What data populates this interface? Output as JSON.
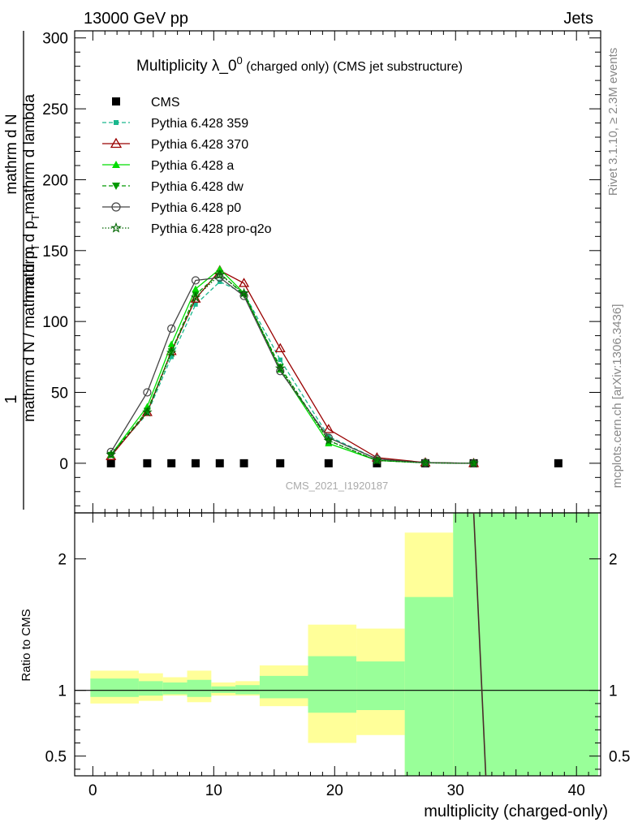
{
  "header": {
    "left": "13000 GeV pp",
    "right": "Jets",
    "side_top": "Rivet 3.1.10, ≥ 2.3M events",
    "side_bottom": "mcplots.cern.ch [arXiv:1306.3436]"
  },
  "chart_data": {
    "type": "line",
    "title_main": "Multiplicity λ_0",
    "title_sup": "0",
    "title_rest": " (charged only) (CMS jet substructure)",
    "watermark": "CMS_2021_I1920187",
    "ylabel_parts": [
      "1",
      "mathrm d N / mathrm d p",
      "T",
      "mathrm d N",
      "mathrm d p",
      "T",
      "mathrm d lambda"
    ],
    "ylabel": "1 / mathrm d N / mathrm d p_T mathrm d N / mathrm d p_T mathrm d lambda",
    "xlabel": "multiplicity (charged-only)",
    "ratio_ylabel": "Ratio to CMS",
    "xlim": [
      -1.5,
      42
    ],
    "ylim": [
      -35,
      305
    ],
    "ratio_ylim": [
      0.35,
      2.35
    ],
    "xticks": [
      0,
      10,
      20,
      30,
      40
    ],
    "yticks": [
      0,
      50,
      100,
      150,
      200,
      250,
      300
    ],
    "ratio_yticks": [
      0.5,
      1,
      2
    ],
    "series": [
      {
        "name": "CMS",
        "color": "#000000",
        "dash": "",
        "marker": "square-filled",
        "x": [
          1.5,
          4.5,
          6.5,
          8.5,
          10.5,
          12.5,
          15.5,
          19.5,
          23.5,
          27.5,
          31.5,
          38.5
        ],
        "y": [
          0,
          0,
          0,
          0,
          0,
          0,
          0,
          0,
          0,
          0,
          0,
          0
        ]
      },
      {
        "name": "Pythia 6.428 359",
        "color": "#1ab78d",
        "dash": "5,3",
        "marker": "square-small",
        "x": [
          1.5,
          4.5,
          6.5,
          8.5,
          10.5,
          12.5,
          15.5,
          19.5,
          23.5,
          27.5,
          31.5
        ],
        "y": [
          6,
          35,
          75,
          112,
          128,
          120,
          73,
          19,
          3,
          0.5,
          0
        ]
      },
      {
        "name": "Pythia 6.428 370",
        "color": "#990000",
        "dash": "",
        "marker": "triangle-open",
        "x": [
          1.5,
          4.5,
          6.5,
          8.5,
          10.5,
          12.5,
          15.5,
          19.5,
          23.5,
          27.5,
          31.5
        ],
        "y": [
          5,
          36,
          79,
          116,
          136,
          127,
          81,
          24,
          4,
          0.5,
          0
        ]
      },
      {
        "name": "Pythia 6.428 a",
        "color": "#00dd00",
        "dash": "",
        "marker": "triangle-filled",
        "x": [
          1.5,
          4.5,
          6.5,
          8.5,
          10.5,
          12.5,
          15.5,
          19.5,
          23.5,
          27.5,
          31.5
        ],
        "y": [
          6,
          40,
          84,
          123,
          137,
          120,
          66,
          14,
          2,
          0.3,
          0
        ]
      },
      {
        "name": "Pythia 6.428 dw",
        "color": "#009900",
        "dash": "5,3",
        "marker": "triangle-down-filled",
        "x": [
          1.5,
          4.5,
          6.5,
          8.5,
          10.5,
          12.5,
          15.5,
          19.5,
          23.5,
          27.5,
          31.5
        ],
        "y": [
          6,
          37,
          79,
          119,
          134,
          119,
          68,
          16,
          2,
          0.3,
          0
        ]
      },
      {
        "name": "Pythia 6.428 p0",
        "color": "#444444",
        "dash": "",
        "marker": "circle-open",
        "x": [
          1.5,
          4.5,
          6.5,
          8.5,
          10.5,
          12.5,
          15.5,
          19.5,
          23.5,
          27.5,
          31.5
        ],
        "y": [
          8,
          50,
          95,
          129,
          131,
          118,
          65,
          18,
          3,
          0.4,
          0
        ]
      },
      {
        "name": "Pythia 6.428 pro-q2o",
        "color": "#006600",
        "dash": "1.5,2",
        "marker": "star-open",
        "x": [
          1.5,
          4.5,
          6.5,
          8.5,
          10.5,
          12.5,
          15.5,
          19.5,
          23.5,
          27.5,
          31.5
        ],
        "y": [
          6,
          36,
          78,
          117,
          133,
          120,
          67,
          16,
          2,
          0.3,
          0
        ]
      }
    ],
    "ratio_bands": [
      {
        "x0": -0.2,
        "x1": 3.8,
        "outer": [
          0.9,
          1.15
        ],
        "inner": [
          0.95,
          1.09
        ]
      },
      {
        "x0": 3.8,
        "x1": 5.8,
        "outer": [
          0.92,
          1.13
        ],
        "inner": [
          0.96,
          1.07
        ]
      },
      {
        "x0": 5.8,
        "x1": 7.8,
        "outer": [
          0.96,
          1.1
        ],
        "inner": [
          0.97,
          1.06
        ]
      },
      {
        "x0": 7.8,
        "x1": 9.8,
        "outer": [
          0.91,
          1.15
        ],
        "inner": [
          0.95,
          1.08
        ]
      },
      {
        "x0": 9.8,
        "x1": 11.8,
        "outer": [
          0.96,
          1.06
        ],
        "inner": [
          0.98,
          1.03
        ]
      },
      {
        "x0": 11.8,
        "x1": 13.8,
        "outer": [
          0.96,
          1.07
        ],
        "inner": [
          0.97,
          1.04
        ]
      },
      {
        "x0": 13.8,
        "x1": 17.8,
        "outer": [
          0.88,
          1.19
        ],
        "inner": [
          0.94,
          1.11
        ]
      },
      {
        "x0": 17.8,
        "x1": 21.8,
        "outer": [
          0.6,
          1.5
        ],
        "inner": [
          0.83,
          1.26
        ]
      },
      {
        "x0": 21.8,
        "x1": 25.8,
        "outer": [
          0.66,
          1.47
        ],
        "inner": [
          0.85,
          1.22
        ]
      },
      {
        "x0": 25.8,
        "x1": 29.8,
        "outer": [
          0.35,
          2.2
        ],
        "inner": [
          0.35,
          1.71
        ]
      },
      {
        "x0": 29.8,
        "x1": 41.8,
        "outer": [
          0.35,
          2.35
        ],
        "inner": [
          0.35,
          2.35
        ]
      }
    ],
    "band_colors": {
      "outer": "#ffff99",
      "inner": "#99ff99"
    },
    "ratio_line": {
      "x": [
        31.5,
        32.5
      ],
      "y": [
        2.35,
        0.35
      ],
      "color": "#4a2a2a"
    }
  }
}
